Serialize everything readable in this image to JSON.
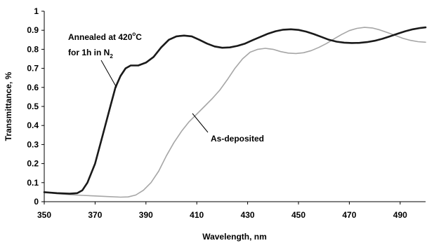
{
  "chart_data": {
    "type": "line",
    "title": "",
    "xlabel": "Wavelength, nm",
    "ylabel": "Transmittance, %",
    "xlim": [
      350,
      500
    ],
    "ylim": [
      0,
      1
    ],
    "x_ticks": [
      "350",
      "370",
      "390",
      "410",
      "430",
      "450",
      "470",
      "490"
    ],
    "y_ticks": [
      "0",
      "0.1",
      "0.2",
      "0.3",
      "0.4",
      "0.5",
      "0.6",
      "0.7",
      "0.8",
      "0.9",
      "1"
    ],
    "grid": false,
    "legend": "none",
    "series": [
      {
        "name": "Annealed at 420°C for 1h in N2",
        "color": "#1a1a1a",
        "points": [
          [
            350,
            0.05
          ],
          [
            355,
            0.045
          ],
          [
            360,
            0.042
          ],
          [
            363,
            0.045
          ],
          [
            365,
            0.06
          ],
          [
            367,
            0.1
          ],
          [
            370,
            0.2
          ],
          [
            373,
            0.35
          ],
          [
            376,
            0.5
          ],
          [
            378,
            0.6
          ],
          [
            380,
            0.66
          ],
          [
            382,
            0.7
          ],
          [
            384,
            0.715
          ],
          [
            387,
            0.715
          ],
          [
            390,
            0.73
          ],
          [
            393,
            0.76
          ],
          [
            396,
            0.81
          ],
          [
            399,
            0.85
          ],
          [
            402,
            0.868
          ],
          [
            405,
            0.872
          ],
          [
            408,
            0.868
          ],
          [
            411,
            0.85
          ],
          [
            414,
            0.83
          ],
          [
            417,
            0.815
          ],
          [
            420,
            0.808
          ],
          [
            423,
            0.81
          ],
          [
            426,
            0.818
          ],
          [
            429,
            0.83
          ],
          [
            432,
            0.848
          ],
          [
            435,
            0.865
          ],
          [
            438,
            0.882
          ],
          [
            441,
            0.895
          ],
          [
            444,
            0.903
          ],
          [
            447,
            0.905
          ],
          [
            450,
            0.902
          ],
          [
            453,
            0.893
          ],
          [
            456,
            0.88
          ],
          [
            459,
            0.865
          ],
          [
            462,
            0.85
          ],
          [
            465,
            0.84
          ],
          [
            468,
            0.835
          ],
          [
            471,
            0.833
          ],
          [
            474,
            0.834
          ],
          [
            477,
            0.838
          ],
          [
            480,
            0.845
          ],
          [
            483,
            0.855
          ],
          [
            486,
            0.868
          ],
          [
            489,
            0.882
          ],
          [
            492,
            0.895
          ],
          [
            495,
            0.905
          ],
          [
            498,
            0.912
          ],
          [
            500,
            0.915
          ]
        ]
      },
      {
        "name": "As-deposited",
        "color": "#a6a6a6",
        "points": [
          [
            350,
            0.05
          ],
          [
            355,
            0.042
          ],
          [
            360,
            0.037
          ],
          [
            365,
            0.033
          ],
          [
            370,
            0.03
          ],
          [
            375,
            0.027
          ],
          [
            380,
            0.024
          ],
          [
            383,
            0.025
          ],
          [
            386,
            0.035
          ],
          [
            389,
            0.06
          ],
          [
            392,
            0.1
          ],
          [
            395,
            0.16
          ],
          [
            398,
            0.24
          ],
          [
            401,
            0.31
          ],
          [
            404,
            0.37
          ],
          [
            407,
            0.42
          ],
          [
            410,
            0.46
          ],
          [
            413,
            0.5
          ],
          [
            416,
            0.54
          ],
          [
            419,
            0.585
          ],
          [
            422,
            0.64
          ],
          [
            425,
            0.7
          ],
          [
            428,
            0.75
          ],
          [
            431,
            0.785
          ],
          [
            434,
            0.8
          ],
          [
            437,
            0.805
          ],
          [
            440,
            0.8
          ],
          [
            443,
            0.788
          ],
          [
            446,
            0.78
          ],
          [
            449,
            0.778
          ],
          [
            452,
            0.782
          ],
          [
            455,
            0.793
          ],
          [
            458,
            0.81
          ],
          [
            461,
            0.83
          ],
          [
            464,
            0.855
          ],
          [
            467,
            0.878
          ],
          [
            470,
            0.898
          ],
          [
            473,
            0.91
          ],
          [
            476,
            0.915
          ],
          [
            479,
            0.912
          ],
          [
            482,
            0.902
          ],
          [
            485,
            0.888
          ],
          [
            488,
            0.873
          ],
          [
            491,
            0.858
          ],
          [
            494,
            0.847
          ],
          [
            497,
            0.84
          ],
          [
            500,
            0.837
          ]
        ]
      }
    ],
    "annotations": {
      "annealed_line1_pre": "Annealed at 420",
      "annealed_line1_sup": "o",
      "annealed_line1_post": "C",
      "annealed_line2_pre": "for 1h in N",
      "annealed_line2_sub": "2",
      "asdeposited": "As-deposited"
    }
  }
}
